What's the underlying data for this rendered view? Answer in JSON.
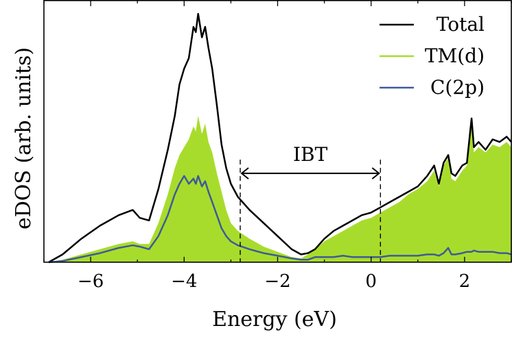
{
  "chart_data": {
    "type": "area",
    "xlabel": "Energy (eV)",
    "ylabel": "eDOS (arb. units)",
    "xlim": [
      -7,
      3
    ],
    "ylim": [
      0,
      1
    ],
    "xticks": [
      -6,
      -4,
      -2,
      0,
      2
    ],
    "xtick_labels": [
      "−6",
      "−4",
      "−2",
      "0",
      "2"
    ],
    "legend_position": "top-right",
    "colors": {
      "total": "#000000",
      "tm_d": "#a8dc2c",
      "c2p": "#3f5a99"
    },
    "series": [
      {
        "name": "Total",
        "style": "line",
        "x": [
          -6.9,
          -6.6,
          -6.2,
          -5.8,
          -5.4,
          -5.1,
          -4.95,
          -4.75,
          -4.55,
          -4.35,
          -4.2,
          -4.1,
          -4.0,
          -3.9,
          -3.8,
          -3.75,
          -3.7,
          -3.62,
          -3.55,
          -3.48,
          -3.4,
          -3.3,
          -3.2,
          -3.1,
          -3.0,
          -2.85,
          -2.6,
          -2.3,
          -2.0,
          -1.7,
          -1.5,
          -1.35,
          -1.2,
          -1.0,
          -0.8,
          -0.6,
          -0.4,
          -0.2,
          0.0,
          0.2,
          0.4,
          0.6,
          0.8,
          1.0,
          1.2,
          1.35,
          1.45,
          1.55,
          1.65,
          1.72,
          1.8,
          1.95,
          2.05,
          2.15,
          2.2,
          2.3,
          2.45,
          2.6,
          2.75,
          2.9,
          3.0
        ],
        "values": [
          0.0,
          0.03,
          0.09,
          0.14,
          0.18,
          0.2,
          0.17,
          0.16,
          0.28,
          0.43,
          0.56,
          0.68,
          0.74,
          0.78,
          0.9,
          0.88,
          0.95,
          0.86,
          0.9,
          0.82,
          0.74,
          0.6,
          0.45,
          0.36,
          0.3,
          0.25,
          0.2,
          0.15,
          0.1,
          0.05,
          0.03,
          0.035,
          0.05,
          0.09,
          0.12,
          0.14,
          0.16,
          0.18,
          0.19,
          0.21,
          0.23,
          0.25,
          0.27,
          0.29,
          0.33,
          0.37,
          0.3,
          0.38,
          0.41,
          0.34,
          0.33,
          0.37,
          0.38,
          0.55,
          0.44,
          0.46,
          0.43,
          0.47,
          0.46,
          0.48,
          0.46
        ]
      },
      {
        "name": "TM(d)",
        "style": "fill",
        "x": [
          -6.9,
          -6.6,
          -6.2,
          -5.8,
          -5.4,
          -5.1,
          -4.95,
          -4.75,
          -4.55,
          -4.35,
          -4.2,
          -4.1,
          -4.0,
          -3.9,
          -3.8,
          -3.75,
          -3.7,
          -3.62,
          -3.55,
          -3.48,
          -3.4,
          -3.3,
          -3.2,
          -3.1,
          -3.0,
          -2.85,
          -2.6,
          -2.3,
          -2.0,
          -1.7,
          -1.5,
          -1.35,
          -1.2,
          -1.0,
          -0.8,
          -0.6,
          -0.4,
          -0.2,
          0.0,
          0.2,
          0.4,
          0.6,
          0.8,
          1.0,
          1.2,
          1.35,
          1.45,
          1.55,
          1.65,
          1.72,
          1.8,
          1.95,
          2.05,
          2.15,
          2.2,
          2.3,
          2.45,
          2.6,
          2.75,
          2.9,
          3.0
        ],
        "values": [
          0.0,
          0.01,
          0.03,
          0.05,
          0.07,
          0.08,
          0.07,
          0.07,
          0.15,
          0.26,
          0.36,
          0.41,
          0.44,
          0.47,
          0.52,
          0.5,
          0.56,
          0.49,
          0.53,
          0.46,
          0.42,
          0.34,
          0.27,
          0.2,
          0.15,
          0.12,
          0.09,
          0.06,
          0.04,
          0.02,
          0.015,
          0.03,
          0.05,
          0.08,
          0.1,
          0.12,
          0.14,
          0.16,
          0.17,
          0.19,
          0.21,
          0.23,
          0.26,
          0.28,
          0.31,
          0.35,
          0.29,
          0.37,
          0.4,
          0.32,
          0.31,
          0.35,
          0.37,
          0.52,
          0.42,
          0.44,
          0.42,
          0.45,
          0.44,
          0.46,
          0.44
        ]
      },
      {
        "name": "C(2p)",
        "style": "line",
        "x": [
          -6.9,
          -6.6,
          -6.2,
          -5.8,
          -5.4,
          -5.1,
          -4.95,
          -4.75,
          -4.55,
          -4.35,
          -4.2,
          -4.1,
          -4.0,
          -3.9,
          -3.8,
          -3.75,
          -3.7,
          -3.62,
          -3.55,
          -3.48,
          -3.4,
          -3.3,
          -3.2,
          -3.1,
          -3.0,
          -2.85,
          -2.6,
          -2.3,
          -2.0,
          -1.7,
          -1.5,
          -1.35,
          -1.2,
          -1.0,
          -0.8,
          -0.6,
          -0.4,
          -0.2,
          0.0,
          0.2,
          0.4,
          0.6,
          0.8,
          1.0,
          1.2,
          1.35,
          1.45,
          1.55,
          1.65,
          1.72,
          1.8,
          1.95,
          2.05,
          2.15,
          2.2,
          2.3,
          2.45,
          2.6,
          2.75,
          2.9,
          3.0
        ],
        "values": [
          0.0,
          0.005,
          0.02,
          0.035,
          0.055,
          0.065,
          0.06,
          0.05,
          0.1,
          0.18,
          0.26,
          0.3,
          0.33,
          0.3,
          0.32,
          0.3,
          0.33,
          0.29,
          0.31,
          0.27,
          0.23,
          0.18,
          0.13,
          0.1,
          0.08,
          0.065,
          0.05,
          0.035,
          0.025,
          0.015,
          0.01,
          0.01,
          0.02,
          0.02,
          0.02,
          0.025,
          0.02,
          0.02,
          0.02,
          0.02,
          0.025,
          0.025,
          0.025,
          0.025,
          0.03,
          0.03,
          0.025,
          0.035,
          0.055,
          0.03,
          0.03,
          0.035,
          0.04,
          0.04,
          0.045,
          0.04,
          0.04,
          0.04,
          0.035,
          0.035,
          0.03
        ]
      }
    ],
    "annotations": [
      {
        "label": "IBT",
        "x_start": -2.8,
        "x_end": 0.2,
        "arrow_y": 0.34
      }
    ]
  }
}
